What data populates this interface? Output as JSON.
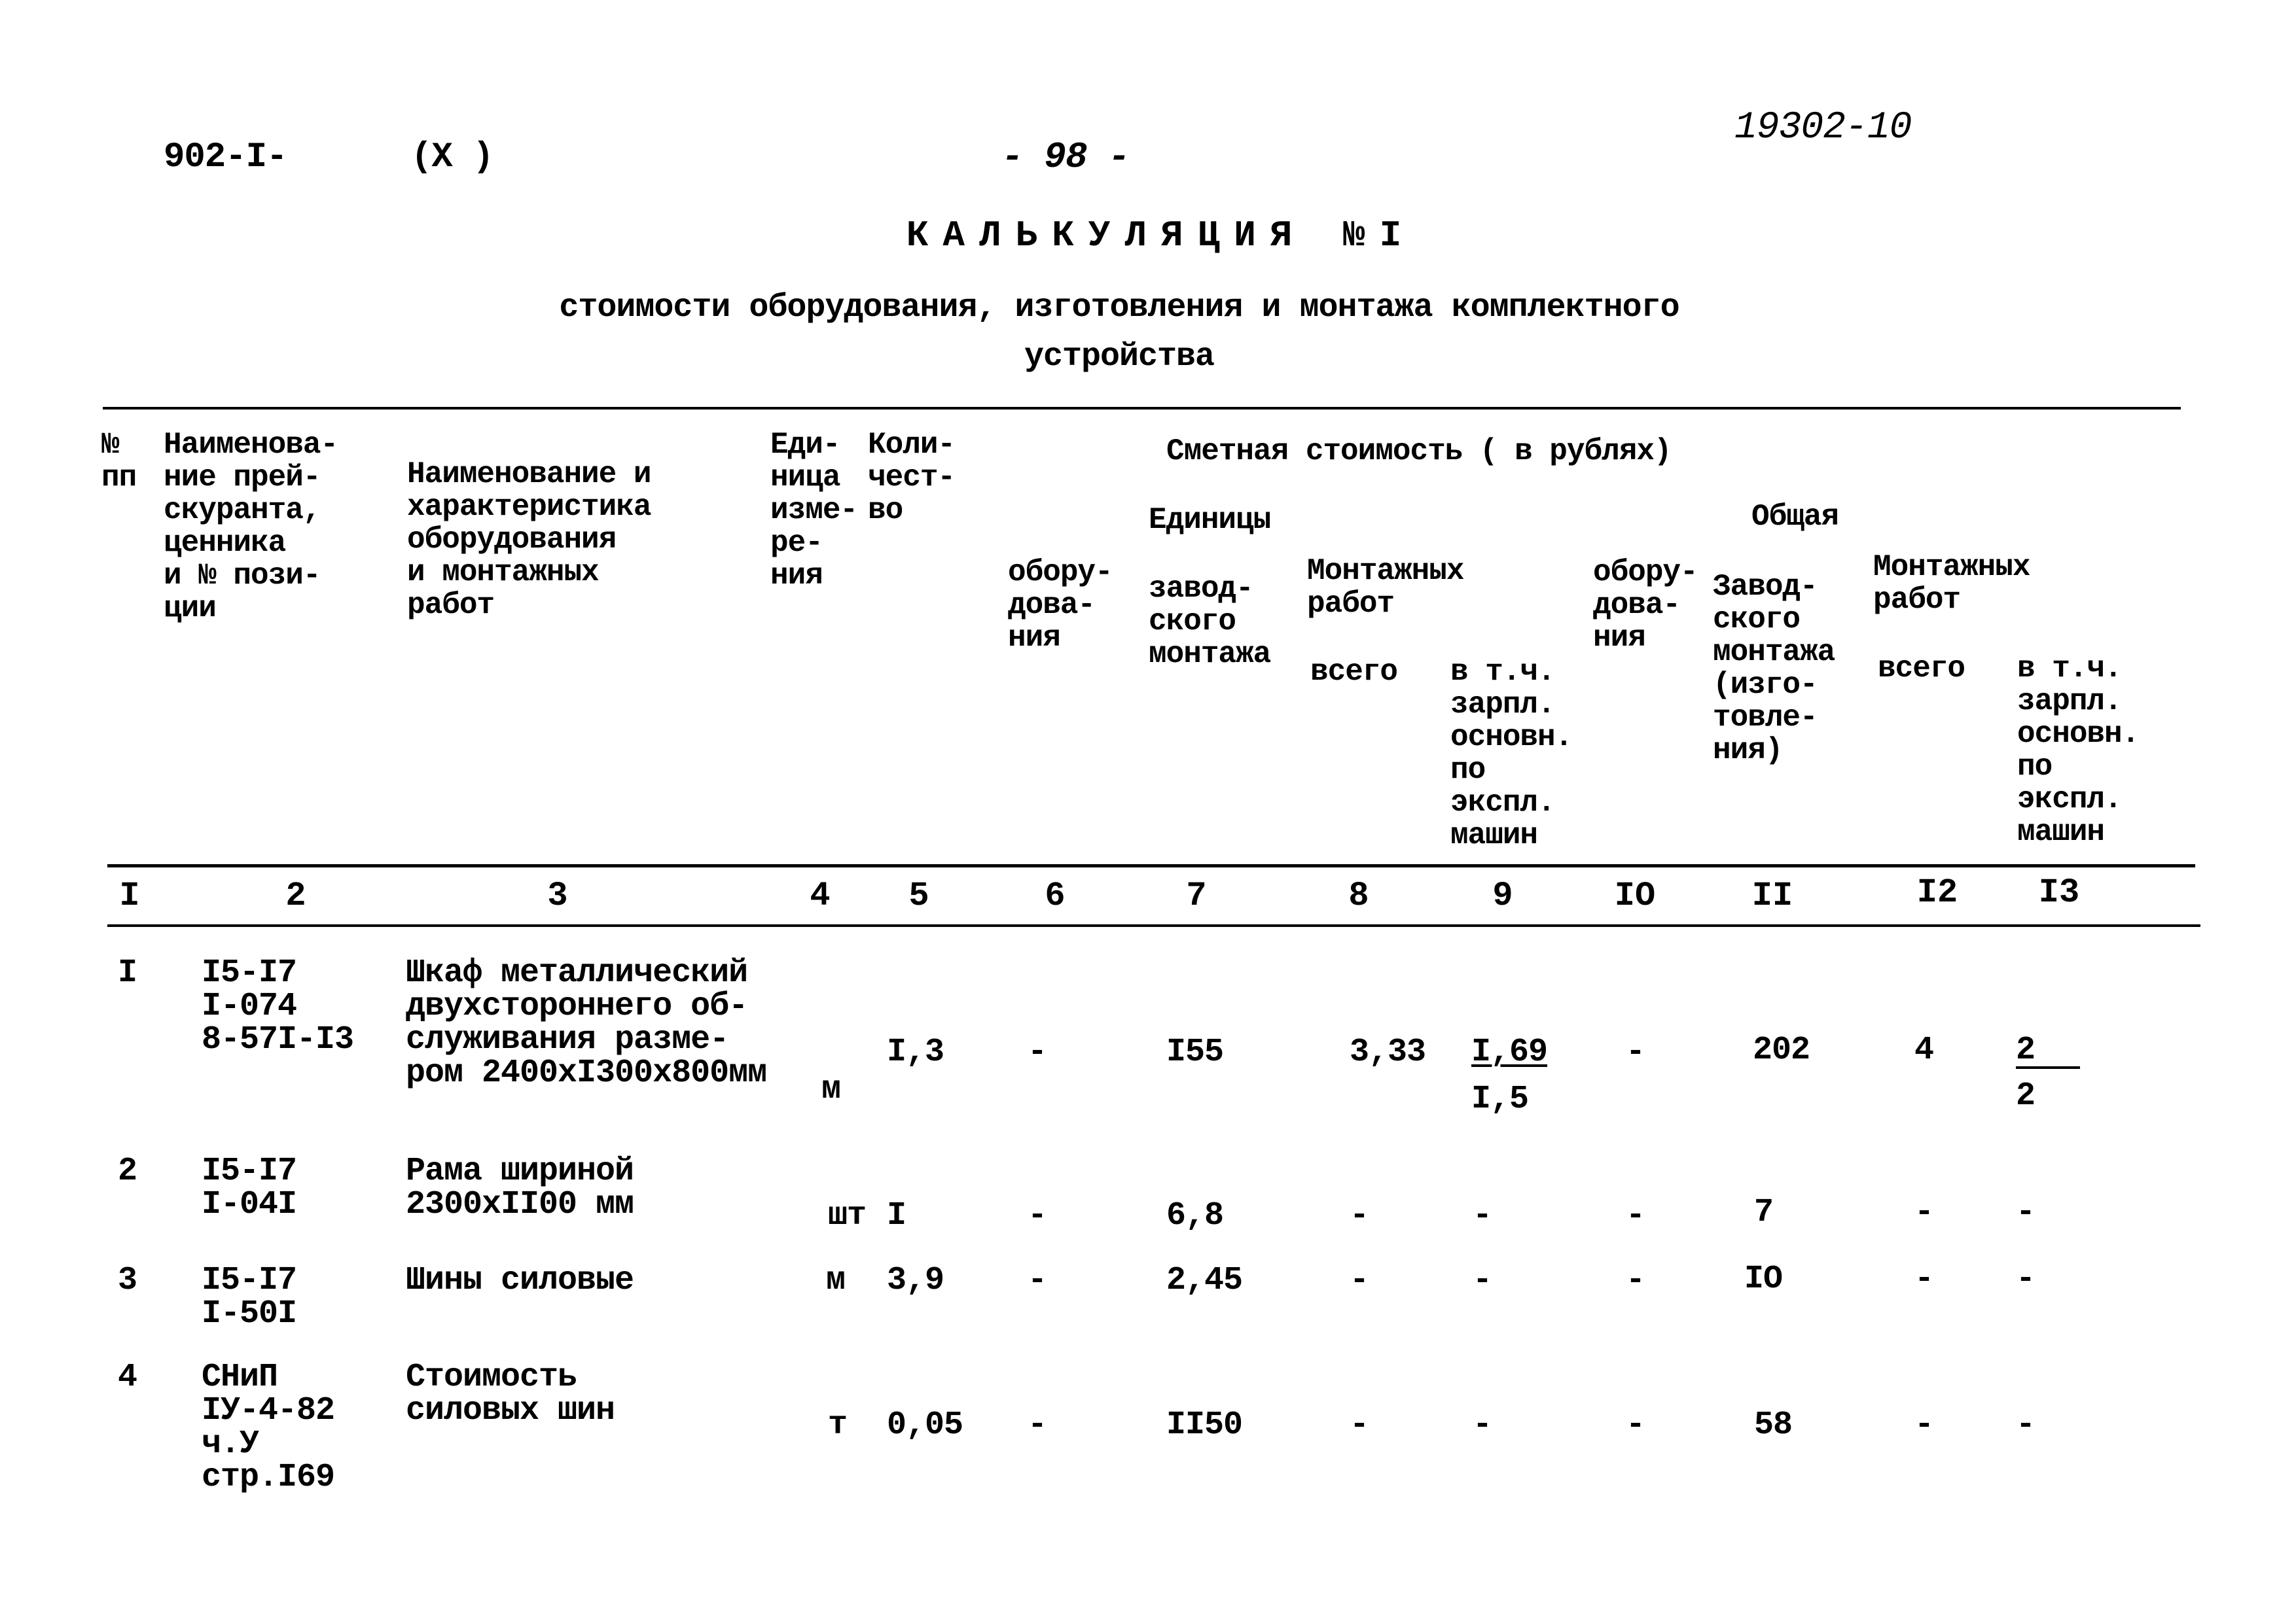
{
  "header": {
    "doc_code": "902-I-",
    "section": "(X )",
    "page_number": "- 98 -",
    "handwritten_number": "19302-10"
  },
  "title": "КАЛЬКУЛЯЦИЯ №I",
  "subtitle_line1": "стоимости оборудования, изготовления и монтажа комплектного",
  "subtitle_line2": "устройства",
  "table": {
    "columns": {
      "c1": "№\nпп",
      "c2": "Наименова-\nние прей-\nскуранта,\nценника\nи № пози-\nции",
      "c3": "Наименование и\nхарактеристика\nоборудования\nи монтажных\nработ",
      "c4": "Еди-\nница\nизме-\nре-\nния",
      "c5": "Коли-\nчест-\nво",
      "group_cost": "Сметная стоимость ( в рублях)",
      "group_unit": "Единицы",
      "group_total": "Общая",
      "c6": "обору-\nдова-\nния",
      "c7": "завод-\nского\nмонтажа",
      "c8_group": "Монтажных\nработ",
      "c8": "всего",
      "c9": "в т.ч.\nзарпл.\nосновн.\nпо\nэкспл.\nмашин",
      "c10": "обору-\nдова-\nния",
      "c11": "Завод-\nского\nмонтажа\n(изго-\nтовле-\nния)",
      "c12_group": "Монтажных\nработ",
      "c12": "всего",
      "c13": "в т.ч.\nзарпл.\nосновн.\nпо\nэкспл.\nмашин"
    },
    "column_numbers": [
      "I",
      "2",
      "3",
      "4",
      "5",
      "6",
      "7",
      "8",
      "9",
      "IO",
      "II",
      "I2",
      "I3"
    ],
    "rows": [
      {
        "num": "I",
        "code": "I5-I7\nI-074\n8-57I-I3",
        "name": "Шкаф металлический\nдвухстороннего об-\nслуживания разме-\nром 2400хI300х800мм",
        "unit": "м",
        "qty": "I,3",
        "equip": "-",
        "factory": "I55",
        "mount_total": "3,33",
        "mount_wage": "I,69",
        "mount_wage_sub": "I,5",
        "total_equip": "-",
        "total_factory": "202",
        "total_mount": "4",
        "total_wage": "2",
        "total_wage_sub": "2"
      },
      {
        "num": "2",
        "code": "I5-I7\nI-04I",
        "name": "Рама шириной\n2300хII00 мм",
        "unit": "шт",
        "qty": "I",
        "equip": "-",
        "factory": "6,8",
        "mount_total": "-",
        "mount_wage": "-",
        "total_equip": "-",
        "total_factory": "7",
        "total_mount": "-",
        "total_wage": "-"
      },
      {
        "num": "3",
        "code": "I5-I7\nI-50I",
        "name": "Шины силовые",
        "unit": "м",
        "qty": "3,9",
        "equip": "-",
        "factory": "2,45",
        "mount_total": "-",
        "mount_wage": "-",
        "total_equip": "-",
        "total_factory": "IO",
        "total_mount": "-",
        "total_wage": "-"
      },
      {
        "num": "4",
        "code": "СНиП\nIУ-4-82\nч.У\nстр.I69",
        "name": "Стоимость\nсиловых шин",
        "unit": "т",
        "qty": "0,05",
        "equip": "-",
        "factory": "II50",
        "mount_total": "-",
        "mount_wage": "-",
        "total_equip": "-",
        "total_factory": "58",
        "total_mount": "-",
        "total_wage": "-"
      }
    ]
  }
}
